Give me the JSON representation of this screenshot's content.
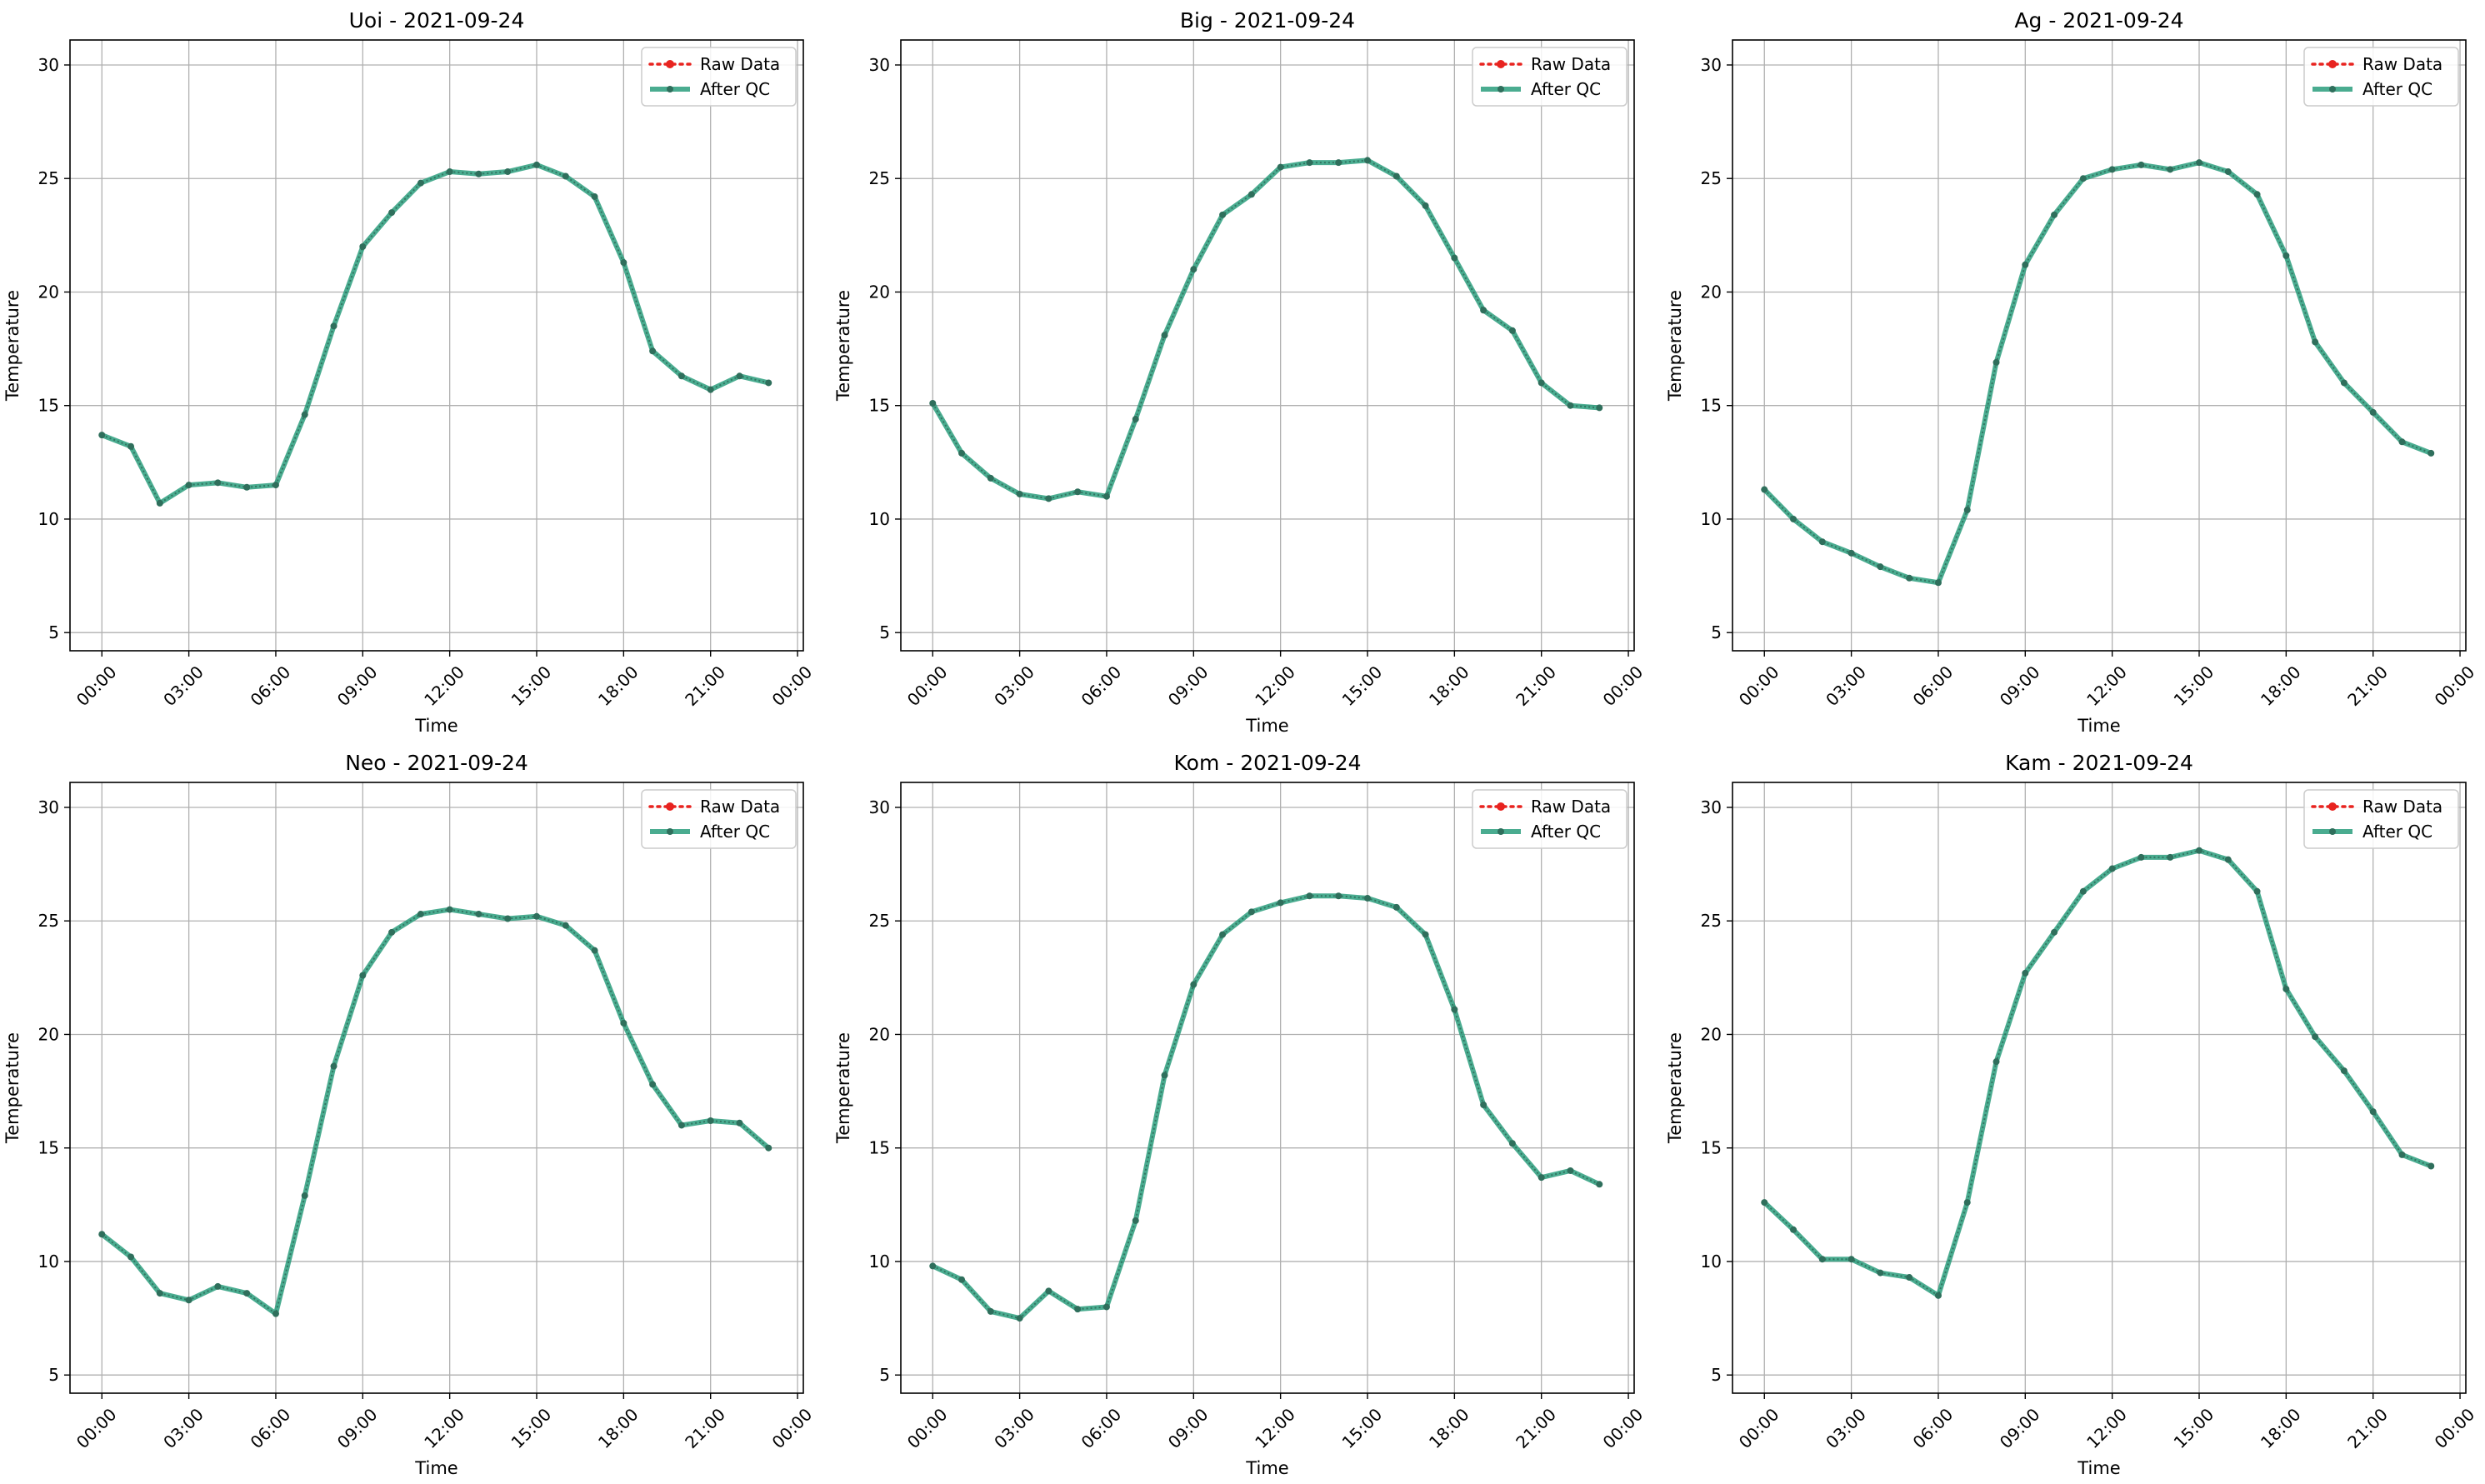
{
  "figure": {
    "colors": {
      "raw": "#e8231f",
      "qc": "#2a9d7c",
      "qc_marker": "#2f6f5c",
      "grid": "#b0b0b0",
      "frame": "#000000"
    }
  },
  "chart_data": [
    {
      "type": "line",
      "title": "Uoi - 2021-09-24",
      "xlabel": "Time",
      "ylabel": "Temperature",
      "ylim": [
        4.2,
        31.1
      ],
      "yticks": [
        5,
        10,
        15,
        20,
        25,
        30
      ],
      "xlim": [
        -1.1,
        24.2
      ],
      "xticks": [
        "00:00",
        "03:00",
        "06:00",
        "09:00",
        "12:00",
        "15:00",
        "18:00",
        "21:00",
        "00:00"
      ],
      "x": [
        0,
        1,
        2,
        3,
        4,
        5,
        6,
        7,
        8,
        9,
        10,
        11,
        12,
        13,
        14,
        15,
        16,
        17,
        18,
        19,
        20,
        21,
        22,
        23
      ],
      "legend_position": "top-right",
      "grid": true,
      "series": [
        {
          "name": "Raw Data",
          "values": [
            13.7,
            13.2,
            10.7,
            11.5,
            11.6,
            11.4,
            11.5,
            14.6,
            18.5,
            22.0,
            23.5,
            24.8,
            25.3,
            25.2,
            25.3,
            25.6,
            25.1,
            24.2,
            21.3,
            17.4,
            16.3,
            15.7,
            16.3,
            16.0
          ]
        },
        {
          "name": "After QC",
          "values": [
            13.7,
            13.2,
            10.7,
            11.5,
            11.6,
            11.4,
            11.5,
            14.6,
            18.5,
            22.0,
            23.5,
            24.8,
            25.3,
            25.2,
            25.3,
            25.6,
            25.1,
            24.2,
            21.3,
            17.4,
            16.3,
            15.7,
            16.3,
            16.0
          ]
        }
      ]
    },
    {
      "type": "line",
      "title": "Big - 2021-09-24",
      "xlabel": "Time",
      "ylabel": "Temperature",
      "ylim": [
        4.2,
        31.1
      ],
      "yticks": [
        5,
        10,
        15,
        20,
        25,
        30
      ],
      "xlim": [
        -1.1,
        24.2
      ],
      "xticks": [
        "00:00",
        "03:00",
        "06:00",
        "09:00",
        "12:00",
        "15:00",
        "18:00",
        "21:00",
        "00:00"
      ],
      "x": [
        0,
        1,
        2,
        3,
        4,
        5,
        6,
        7,
        8,
        9,
        10,
        11,
        12,
        13,
        14,
        15,
        16,
        17,
        18,
        19,
        20,
        21,
        22,
        23
      ],
      "legend_position": "top-right",
      "grid": true,
      "series": [
        {
          "name": "Raw Data",
          "values": [
            15.1,
            12.9,
            11.8,
            11.1,
            10.9,
            11.2,
            11.0,
            14.4,
            18.1,
            21.0,
            23.4,
            24.3,
            25.5,
            25.7,
            25.7,
            25.8,
            25.1,
            23.8,
            21.5,
            19.2,
            18.3,
            16.0,
            15.0,
            14.9
          ]
        },
        {
          "name": "After QC",
          "values": [
            15.1,
            12.9,
            11.8,
            11.1,
            10.9,
            11.2,
            11.0,
            14.4,
            18.1,
            21.0,
            23.4,
            24.3,
            25.5,
            25.7,
            25.7,
            25.8,
            25.1,
            23.8,
            21.5,
            19.2,
            18.3,
            16.0,
            15.0,
            14.9
          ]
        }
      ]
    },
    {
      "type": "line",
      "title": "Ag - 2021-09-24",
      "xlabel": "Time",
      "ylabel": "Temperature",
      "ylim": [
        4.2,
        31.1
      ],
      "yticks": [
        5,
        10,
        15,
        20,
        25,
        30
      ],
      "xlim": [
        -1.1,
        24.2
      ],
      "xticks": [
        "00:00",
        "03:00",
        "06:00",
        "09:00",
        "12:00",
        "15:00",
        "18:00",
        "21:00",
        "00:00"
      ],
      "x": [
        0,
        1,
        2,
        3,
        4,
        5,
        6,
        7,
        8,
        9,
        10,
        11,
        12,
        13,
        14,
        15,
        16,
        17,
        18,
        19,
        20,
        21,
        22,
        23
      ],
      "legend_position": "top-right",
      "grid": true,
      "series": [
        {
          "name": "Raw Data",
          "values": [
            11.3,
            10.0,
            9.0,
            8.5,
            7.9,
            7.4,
            7.2,
            10.4,
            16.9,
            21.2,
            23.4,
            25.0,
            25.4,
            25.6,
            25.4,
            25.7,
            25.3,
            24.3,
            21.6,
            17.8,
            16.0,
            14.7,
            13.4,
            12.9
          ]
        },
        {
          "name": "After QC",
          "values": [
            11.3,
            10.0,
            9.0,
            8.5,
            7.9,
            7.4,
            7.2,
            10.4,
            16.9,
            21.2,
            23.4,
            25.0,
            25.4,
            25.6,
            25.4,
            25.7,
            25.3,
            24.3,
            21.6,
            17.8,
            16.0,
            14.7,
            13.4,
            12.9
          ]
        }
      ]
    },
    {
      "type": "line",
      "title": "Neo - 2021-09-24",
      "xlabel": "Time",
      "ylabel": "Temperature",
      "ylim": [
        4.2,
        31.1
      ],
      "yticks": [
        5,
        10,
        15,
        20,
        25,
        30
      ],
      "xlim": [
        -1.1,
        24.2
      ],
      "xticks": [
        "00:00",
        "03:00",
        "06:00",
        "09:00",
        "12:00",
        "15:00",
        "18:00",
        "21:00",
        "00:00"
      ],
      "x": [
        0,
        1,
        2,
        3,
        4,
        5,
        6,
        7,
        8,
        9,
        10,
        11,
        12,
        13,
        14,
        15,
        16,
        17,
        18,
        19,
        20,
        21,
        22,
        23
      ],
      "legend_position": "top-right",
      "grid": true,
      "series": [
        {
          "name": "Raw Data",
          "values": [
            11.2,
            10.2,
            8.6,
            8.3,
            8.9,
            8.6,
            7.7,
            12.9,
            18.6,
            22.6,
            24.5,
            25.3,
            25.5,
            25.3,
            25.1,
            25.2,
            24.8,
            23.7,
            20.5,
            17.8,
            16.0,
            16.2,
            16.1,
            15.0
          ]
        },
        {
          "name": "After QC",
          "values": [
            11.2,
            10.2,
            8.6,
            8.3,
            8.9,
            8.6,
            7.7,
            12.9,
            18.6,
            22.6,
            24.5,
            25.3,
            25.5,
            25.3,
            25.1,
            25.2,
            24.8,
            23.7,
            20.5,
            17.8,
            16.0,
            16.2,
            16.1,
            15.0
          ]
        }
      ]
    },
    {
      "type": "line",
      "title": "Kom - 2021-09-24",
      "xlabel": "Time",
      "ylabel": "Temperature",
      "ylim": [
        4.2,
        31.1
      ],
      "yticks": [
        5,
        10,
        15,
        20,
        25,
        30
      ],
      "xlim": [
        -1.1,
        24.2
      ],
      "xticks": [
        "00:00",
        "03:00",
        "06:00",
        "09:00",
        "12:00",
        "15:00",
        "18:00",
        "21:00",
        "00:00"
      ],
      "x": [
        0,
        1,
        2,
        3,
        4,
        5,
        6,
        7,
        8,
        9,
        10,
        11,
        12,
        13,
        14,
        15,
        16,
        17,
        18,
        19,
        20,
        21,
        22,
        23
      ],
      "legend_position": "top-right",
      "grid": true,
      "series": [
        {
          "name": "Raw Data",
          "values": [
            9.8,
            9.2,
            7.8,
            7.5,
            8.7,
            7.9,
            8.0,
            11.8,
            18.2,
            22.2,
            24.4,
            25.4,
            25.8,
            26.1,
            26.1,
            26.0,
            25.6,
            24.4,
            21.1,
            16.9,
            15.2,
            13.7,
            14.0,
            13.4
          ]
        },
        {
          "name": "After QC",
          "values": [
            9.8,
            9.2,
            7.8,
            7.5,
            8.7,
            7.9,
            8.0,
            11.8,
            18.2,
            22.2,
            24.4,
            25.4,
            25.8,
            26.1,
            26.1,
            26.0,
            25.6,
            24.4,
            21.1,
            16.9,
            15.2,
            13.7,
            14.0,
            13.4
          ]
        }
      ]
    },
    {
      "type": "line",
      "title": "Kam - 2021-09-24",
      "xlabel": "Time",
      "ylabel": "Temperature",
      "ylim": [
        4.2,
        31.1
      ],
      "yticks": [
        5,
        10,
        15,
        20,
        25,
        30
      ],
      "xlim": [
        -1.1,
        24.2
      ],
      "xticks": [
        "00:00",
        "03:00",
        "06:00",
        "09:00",
        "12:00",
        "15:00",
        "18:00",
        "21:00",
        "00:00"
      ],
      "x": [
        0,
        1,
        2,
        3,
        4,
        5,
        6,
        7,
        8,
        9,
        10,
        11,
        12,
        13,
        14,
        15,
        16,
        17,
        18,
        19,
        20,
        21,
        22,
        23
      ],
      "legend_position": "top-right",
      "grid": true,
      "series": [
        {
          "name": "Raw Data",
          "values": [
            12.6,
            11.4,
            10.1,
            10.1,
            9.5,
            9.3,
            8.5,
            12.6,
            18.8,
            22.7,
            24.5,
            26.3,
            27.3,
            27.8,
            27.8,
            28.1,
            27.7,
            26.3,
            22.0,
            19.9,
            18.4,
            16.6,
            14.7,
            14.2
          ]
        },
        {
          "name": "After QC",
          "values": [
            12.6,
            11.4,
            10.1,
            10.1,
            9.5,
            9.3,
            8.5,
            12.6,
            18.8,
            22.7,
            24.5,
            26.3,
            27.3,
            27.8,
            27.8,
            28.1,
            27.7,
            26.3,
            22.0,
            19.9,
            18.4,
            16.6,
            14.7,
            14.2
          ]
        }
      ]
    }
  ]
}
